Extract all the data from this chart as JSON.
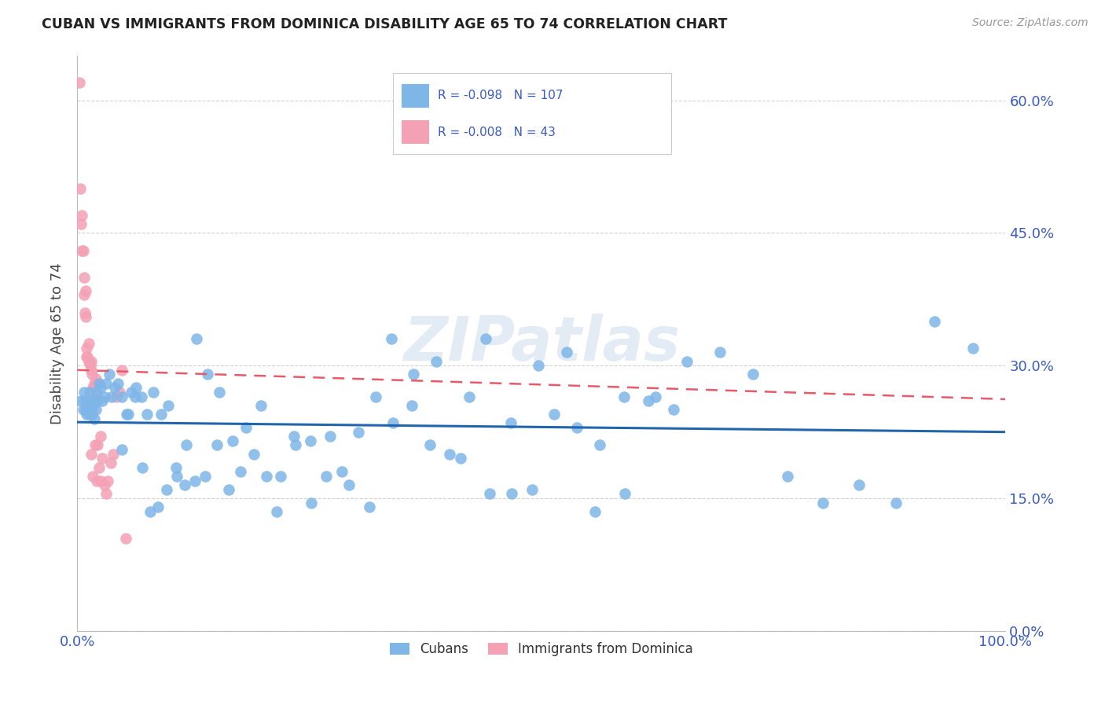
{
  "title": "CUBAN VS IMMIGRANTS FROM DOMINICA DISABILITY AGE 65 TO 74 CORRELATION CHART",
  "source": "Source: ZipAtlas.com",
  "ylabel": "Disability Age 65 to 74",
  "xlim": [
    0.0,
    1.0
  ],
  "ylim": [
    0.0,
    0.65
  ],
  "yticks": [
    0.0,
    0.15,
    0.3,
    0.45,
    0.6
  ],
  "ytick_labels": [
    "0.0%",
    "15.0%",
    "30.0%",
    "45.0%",
    "60.0%"
  ],
  "cubans_R": -0.098,
  "cubans_N": 107,
  "dominica_R": -0.008,
  "dominica_N": 43,
  "cubans_color": "#7eb6e8",
  "dominica_color": "#f4a0b5",
  "cubans_line_color": "#2166ac",
  "dominica_line_color": "#e8596a",
  "legend_color": "#3a5bbf",
  "watermark": "ZIPatlas",
  "cubans_x": [
    0.004,
    0.006,
    0.007,
    0.008,
    0.009,
    0.01,
    0.011,
    0.012,
    0.013,
    0.014,
    0.015,
    0.016,
    0.017,
    0.018,
    0.019,
    0.02,
    0.021,
    0.022,
    0.023,
    0.025,
    0.027,
    0.029,
    0.031,
    0.034,
    0.037,
    0.04,
    0.044,
    0.048,
    0.053,
    0.058,
    0.063,
    0.069,
    0.075,
    0.082,
    0.09,
    0.098,
    0.107,
    0.117,
    0.128,
    0.14,
    0.153,
    0.167,
    0.182,
    0.198,
    0.215,
    0.233,
    0.252,
    0.272,
    0.293,
    0.315,
    0.338,
    0.362,
    0.387,
    0.413,
    0.44,
    0.468,
    0.497,
    0.527,
    0.558,
    0.59,
    0.623,
    0.657,
    0.692,
    0.728,
    0.765,
    0.803,
    0.842,
    0.882,
    0.923,
    0.965,
    0.048,
    0.055,
    0.062,
    0.07,
    0.078,
    0.087,
    0.096,
    0.106,
    0.116,
    0.127,
    0.138,
    0.15,
    0.163,
    0.176,
    0.19,
    0.204,
    0.219,
    0.235,
    0.251,
    0.268,
    0.285,
    0.303,
    0.321,
    0.34,
    0.36,
    0.38,
    0.401,
    0.422,
    0.444,
    0.467,
    0.49,
    0.514,
    0.538,
    0.563,
    0.589,
    0.615,
    0.642
  ],
  "cubans_y": [
    0.26,
    0.25,
    0.27,
    0.26,
    0.25,
    0.245,
    0.26,
    0.245,
    0.27,
    0.255,
    0.25,
    0.245,
    0.255,
    0.24,
    0.26,
    0.25,
    0.27,
    0.26,
    0.28,
    0.275,
    0.26,
    0.265,
    0.28,
    0.29,
    0.265,
    0.275,
    0.28,
    0.265,
    0.245,
    0.27,
    0.275,
    0.265,
    0.245,
    0.27,
    0.245,
    0.255,
    0.175,
    0.21,
    0.33,
    0.29,
    0.27,
    0.215,
    0.23,
    0.255,
    0.135,
    0.22,
    0.145,
    0.22,
    0.165,
    0.14,
    0.33,
    0.29,
    0.305,
    0.195,
    0.33,
    0.155,
    0.3,
    0.315,
    0.135,
    0.155,
    0.265,
    0.305,
    0.315,
    0.29,
    0.175,
    0.145,
    0.165,
    0.145,
    0.35,
    0.32,
    0.205,
    0.245,
    0.265,
    0.185,
    0.135,
    0.14,
    0.16,
    0.185,
    0.165,
    0.17,
    0.175,
    0.21,
    0.16,
    0.18,
    0.2,
    0.175,
    0.175,
    0.21,
    0.215,
    0.175,
    0.18,
    0.225,
    0.265,
    0.235,
    0.255,
    0.21,
    0.2,
    0.265,
    0.155,
    0.235,
    0.16,
    0.245,
    0.23,
    0.21,
    0.265,
    0.26,
    0.25
  ],
  "dominica_x": [
    0.002,
    0.003,
    0.004,
    0.005,
    0.005,
    0.006,
    0.007,
    0.007,
    0.008,
    0.009,
    0.009,
    0.01,
    0.01,
    0.011,
    0.012,
    0.012,
    0.013,
    0.014,
    0.015,
    0.015,
    0.016,
    0.017,
    0.018,
    0.019,
    0.02,
    0.022,
    0.025,
    0.015,
    0.017,
    0.019,
    0.021,
    0.023,
    0.025,
    0.027,
    0.029,
    0.031,
    0.033,
    0.036,
    0.039,
    0.042,
    0.045,
    0.048,
    0.052
  ],
  "dominica_y": [
    0.62,
    0.5,
    0.46,
    0.47,
    0.43,
    0.43,
    0.38,
    0.4,
    0.36,
    0.355,
    0.385,
    0.31,
    0.32,
    0.31,
    0.305,
    0.325,
    0.305,
    0.3,
    0.295,
    0.305,
    0.29,
    0.275,
    0.28,
    0.265,
    0.285,
    0.21,
    0.17,
    0.2,
    0.175,
    0.21,
    0.17,
    0.185,
    0.22,
    0.195,
    0.165,
    0.155,
    0.17,
    0.19,
    0.2,
    0.265,
    0.27,
    0.295,
    0.105
  ]
}
